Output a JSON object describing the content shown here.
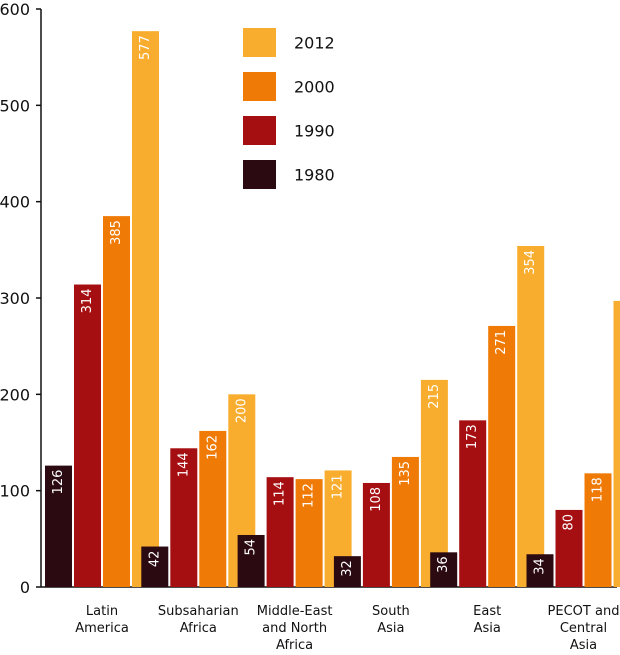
{
  "chart_data": {
    "type": "bar",
    "categories": [
      [
        "Latin",
        "America"
      ],
      [
        "Subsaharian",
        "Africa"
      ],
      [
        "Middle-East",
        "and North",
        "Africa"
      ],
      [
        "South",
        "Asia"
      ],
      [
        "East",
        "Asia"
      ],
      [
        "PECOT and",
        "Central",
        "Asia"
      ]
    ],
    "series": [
      {
        "name": "1980",
        "color": "#2b0a12",
        "values": [
          126,
          42,
          54,
          32,
          36,
          34
        ]
      },
      {
        "name": "1990",
        "color": "#a50f12",
        "values": [
          314,
          144,
          114,
          108,
          173,
          80
        ]
      },
      {
        "name": "2000",
        "color": "#ef7a06",
        "values": [
          385,
          162,
          112,
          135,
          271,
          118
        ]
      },
      {
        "name": "2012",
        "color": "#f9ad2e",
        "values": [
          577,
          200,
          121,
          215,
          354,
          297
        ]
      }
    ],
    "legend_order": [
      "2012",
      "2000",
      "1990",
      "1980"
    ],
    "legend_position": "top-center",
    "ylim": [
      0,
      600
    ],
    "yticks": [
      0,
      100,
      200,
      300,
      400,
      500,
      600
    ],
    "grid": false,
    "title": "",
    "xlabel": "",
    "ylabel": ""
  }
}
